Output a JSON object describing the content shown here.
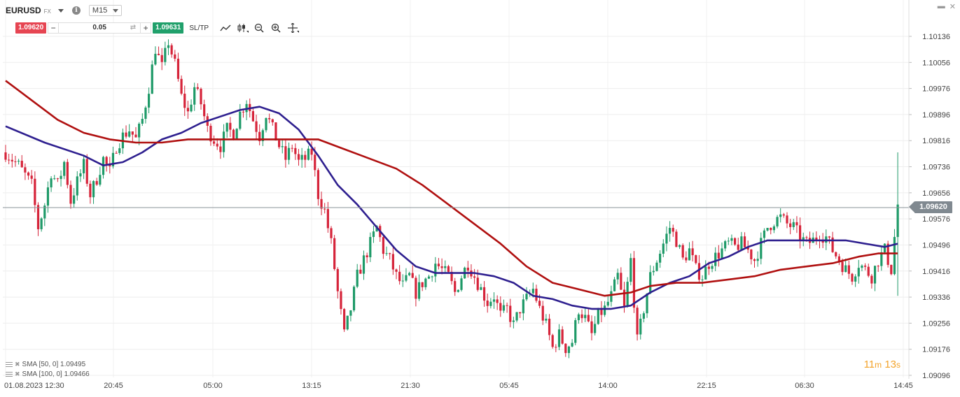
{
  "header": {
    "symbol": "EURUSD",
    "market": "FX",
    "timeframe": "M15"
  },
  "trade_bar": {
    "sell_price": "1.09620",
    "quantity": "0.05",
    "minus_label": "−",
    "plus_label": "+",
    "buy_price": "1.09631",
    "sltp_label": "SL/TP"
  },
  "icons": {
    "symbol_dropdown": "chevron-down-icon",
    "info": "info-icon",
    "swap": "swap-icon",
    "line_tool": "trend-line-icon",
    "chart_type": "candlestick-icon",
    "zoom_out": "zoom-out-icon",
    "zoom_in": "zoom-in-icon",
    "crosshair": "crosshair-icon",
    "minimize": "minimize-icon",
    "close": "close-icon"
  },
  "colors": {
    "up": "#1e9a68",
    "down": "#d6243a",
    "sma50": "#2e1f8f",
    "sma100": "#b01010",
    "sell": "#e64552",
    "buy": "#20a06b",
    "timer": "#f3a32a"
  },
  "legend": [
    {
      "label": "SMA [50, 0] 1.09495"
    },
    {
      "label": "SMA [100, 0] 1.09466"
    }
  ],
  "timer": {
    "minutes": "11",
    "m": "m",
    "seconds": "13",
    "s": "s"
  },
  "current_price_label": "1.09620",
  "chart_data": {
    "type": "candlestick",
    "instrument": "EURUSD",
    "timeframe": "M15",
    "y_ticks": [
      "1.10136",
      "1.10056",
      "1.09976",
      "1.09896",
      "1.09816",
      "1.09736",
      "1.09656",
      "1.09576",
      "1.09496",
      "1.09416",
      "1.09336",
      "1.09256",
      "1.09176",
      "1.09096"
    ],
    "ylim": [
      1.09096,
      1.10176
    ],
    "x_ticks": [
      "01.08.2023 12:30",
      "20:45",
      "05:00",
      "13:15",
      "21:30",
      "05:45",
      "14:00",
      "22:15",
      "06:30",
      "14:45"
    ],
    "current_price": 1.0962,
    "grid": true,
    "close_path": [
      [
        0,
        1.0978
      ],
      [
        4,
        1.0974
      ],
      [
        8,
        1.0968
      ],
      [
        10,
        1.0955
      ],
      [
        12,
        1.0962
      ],
      [
        14,
        1.0972
      ],
      [
        16,
        1.0968
      ],
      [
        18,
        1.0975
      ],
      [
        20,
        1.0963
      ],
      [
        22,
        1.0969
      ],
      [
        24,
        1.0974
      ],
      [
        26,
        1.0965
      ],
      [
        28,
        1.097
      ],
      [
        30,
        1.0976
      ],
      [
        32,
        1.0972
      ],
      [
        34,
        1.098
      ],
      [
        36,
        1.0983
      ],
      [
        38,
        1.0985
      ],
      [
        40,
        1.0982
      ],
      [
        42,
        1.0988
      ],
      [
        44,
        1.0998
      ],
      [
        46,
        1.101
      ],
      [
        48,
        1.1004
      ],
      [
        50,
        1.1012
      ],
      [
        52,
        1.1005
      ],
      [
        54,
        1.0995
      ],
      [
        56,
        1.099
      ],
      [
        58,
        1.0998
      ],
      [
        60,
        1.0993
      ],
      [
        62,
        1.0985
      ],
      [
        64,
        1.0982
      ],
      [
        66,
        1.098
      ],
      [
        68,
        1.0985
      ],
      [
        70,
        1.0984
      ],
      [
        72,
        1.099
      ],
      [
        74,
        1.0994
      ],
      [
        76,
        1.0988
      ],
      [
        78,
        1.0983
      ],
      [
        80,
        1.099
      ],
      [
        82,
        1.0985
      ],
      [
        84,
        1.098
      ],
      [
        86,
        1.0976
      ],
      [
        88,
        1.098
      ],
      [
        90,
        1.0975
      ],
      [
        92,
        1.0976
      ],
      [
        94,
        1.0978
      ],
      [
        96,
        1.0965
      ],
      [
        98,
        1.096
      ],
      [
        100,
        1.095
      ],
      [
        102,
        1.0935
      ],
      [
        104,
        1.0922
      ],
      [
        106,
        1.093
      ],
      [
        108,
        1.094
      ],
      [
        110,
        1.0945
      ],
      [
        112,
        1.095
      ],
      [
        114,
        1.0955
      ],
      [
        116,
        1.0948
      ],
      [
        118,
        1.0945
      ],
      [
        120,
        1.094
      ],
      [
        122,
        1.0937
      ],
      [
        124,
        1.094
      ],
      [
        126,
        1.0935
      ],
      [
        128,
        1.0938
      ],
      [
        130,
        1.094
      ],
      [
        132,
        1.0944
      ],
      [
        134,
        1.0942
      ],
      [
        136,
        1.094
      ],
      [
        138,
        1.0935
      ],
      [
        140,
        1.094
      ],
      [
        142,
        1.0944
      ],
      [
        144,
        1.094
      ],
      [
        146,
        1.0936
      ],
      [
        148,
        1.0932
      ],
      [
        150,
        1.0934
      ],
      [
        152,
        1.0928
      ],
      [
        154,
        1.093
      ],
      [
        156,
        1.0925
      ],
      [
        158,
        1.093
      ],
      [
        160,
        1.0933
      ],
      [
        162,
        1.0936
      ],
      [
        164,
        1.093
      ],
      [
        166,
        1.0925
      ],
      [
        168,
        1.0918
      ],
      [
        170,
        1.0922
      ],
      [
        172,
        1.0918
      ],
      [
        174,
        1.092
      ],
      [
        176,
        1.093
      ],
      [
        178,
        1.0927
      ],
      [
        180,
        1.0922
      ],
      [
        182,
        1.0928
      ],
      [
        184,
        1.093
      ],
      [
        186,
        1.0934
      ],
      [
        188,
        1.094
      ],
      [
        190,
        1.093
      ],
      [
        192,
        1.0945
      ],
      [
        194,
        1.092
      ],
      [
        196,
        1.093
      ],
      [
        198,
        1.094
      ],
      [
        200,
        1.0945
      ],
      [
        202,
        1.095
      ],
      [
        204,
        1.0955
      ],
      [
        206,
        1.0951
      ],
      [
        208,
        1.0945
      ],
      [
        210,
        1.0948
      ],
      [
        212,
        1.0942
      ],
      [
        214,
        1.094
      ],
      [
        216,
        1.0944
      ],
      [
        218,
        1.0946
      ],
      [
        220,
        1.0948
      ],
      [
        222,
        1.095
      ],
      [
        224,
        1.0949
      ],
      [
        226,
        1.095
      ],
      [
        228,
        1.0948
      ],
      [
        230,
        1.0945
      ],
      [
        232,
        1.095
      ],
      [
        234,
        1.0955
      ],
      [
        236,
        1.0957
      ],
      [
        238,
        1.0958
      ],
      [
        240,
        1.0956
      ],
      [
        242,
        1.0955
      ],
      [
        244,
        1.0952
      ],
      [
        246,
        1.095
      ],
      [
        248,
        1.0951
      ],
      [
        250,
        1.0953
      ],
      [
        252,
        1.0952
      ],
      [
        254,
        1.0948
      ],
      [
        256,
        1.0945
      ],
      [
        258,
        1.0942
      ],
      [
        260,
        1.094
      ],
      [
        262,
        1.0944
      ],
      [
        264,
        1.0942
      ],
      [
        266,
        1.094
      ],
      [
        268,
        1.0945
      ],
      [
        270,
        1.0948
      ],
      [
        272,
        1.0942
      ],
      [
        274,
        1.0962
      ]
    ],
    "series": [
      {
        "name": "SMA [50, 0]",
        "value": 1.09495,
        "color": "#2e1f8f",
        "points": [
          [
            0,
            1.0986
          ],
          [
            12,
            1.0981
          ],
          [
            24,
            1.0977
          ],
          [
            30,
            1.0974
          ],
          [
            36,
            1.0975
          ],
          [
            42,
            1.0978
          ],
          [
            48,
            1.0982
          ],
          [
            54,
            1.0984
          ],
          [
            60,
            1.0987
          ],
          [
            66,
            1.0989
          ],
          [
            72,
            1.0991
          ],
          [
            78,
            1.0992
          ],
          [
            84,
            1.099
          ],
          [
            90,
            1.0985
          ],
          [
            96,
            1.0977
          ],
          [
            102,
            1.0968
          ],
          [
            108,
            1.0962
          ],
          [
            114,
            1.0955
          ],
          [
            120,
            1.0948
          ],
          [
            126,
            1.0943
          ],
          [
            132,
            1.0941
          ],
          [
            138,
            1.0941
          ],
          [
            144,
            1.0941
          ],
          [
            150,
            1.094
          ],
          [
            156,
            1.0938
          ],
          [
            162,
            1.0934
          ],
          [
            168,
            1.0933
          ],
          [
            174,
            1.0931
          ],
          [
            180,
            1.093
          ],
          [
            186,
            1.093
          ],
          [
            192,
            1.0931
          ],
          [
            198,
            1.0935
          ],
          [
            204,
            1.0938
          ],
          [
            210,
            1.094
          ],
          [
            216,
            1.0944
          ],
          [
            222,
            1.0946
          ],
          [
            228,
            1.0949
          ],
          [
            234,
            1.0951
          ],
          [
            240,
            1.0951
          ],
          [
            246,
            1.0951
          ],
          [
            252,
            1.0951
          ],
          [
            258,
            1.0951
          ],
          [
            264,
            1.095
          ],
          [
            270,
            1.0949
          ],
          [
            274,
            1.095
          ]
        ]
      },
      {
        "name": "SMA [100, 0]",
        "value": 1.09466,
        "color": "#b01010",
        "points": [
          [
            0,
            1.1
          ],
          [
            8,
            1.0994
          ],
          [
            16,
            1.0988
          ],
          [
            24,
            1.0984
          ],
          [
            32,
            1.0982
          ],
          [
            40,
            1.0981
          ],
          [
            48,
            1.0981
          ],
          [
            56,
            1.0982
          ],
          [
            64,
            1.0982
          ],
          [
            72,
            1.0982
          ],
          [
            80,
            1.0982
          ],
          [
            88,
            1.0982
          ],
          [
            96,
            1.0982
          ],
          [
            104,
            1.0979
          ],
          [
            112,
            1.0976
          ],
          [
            120,
            1.0973
          ],
          [
            128,
            1.0968
          ],
          [
            136,
            1.0962
          ],
          [
            144,
            1.0956
          ],
          [
            152,
            1.095
          ],
          [
            160,
            1.0943
          ],
          [
            168,
            1.0938
          ],
          [
            176,
            1.0936
          ],
          [
            184,
            1.0934
          ],
          [
            192,
            1.0935
          ],
          [
            198,
            1.0937
          ],
          [
            206,
            1.0938
          ],
          [
            214,
            1.0938
          ],
          [
            222,
            1.0939
          ],
          [
            230,
            1.094
          ],
          [
            238,
            1.0942
          ],
          [
            246,
            1.0943
          ],
          [
            254,
            1.0944
          ],
          [
            262,
            1.0946
          ],
          [
            268,
            1.0947
          ],
          [
            274,
            1.0947
          ]
        ]
      }
    ]
  }
}
